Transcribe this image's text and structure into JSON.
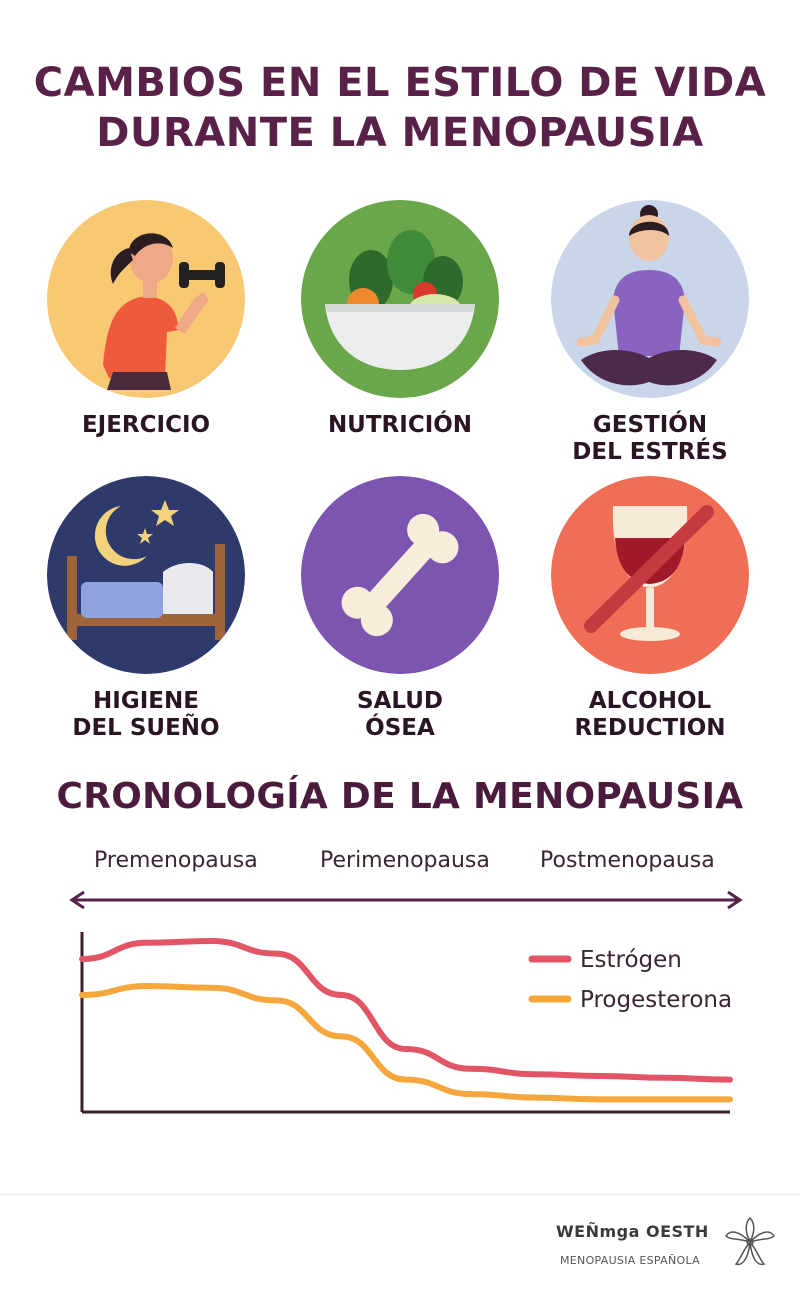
{
  "title": {
    "line1": "CAMBIOS EN EL ESTILO DE VIDA",
    "line2": "DURANTE LA MENOPAUSIA"
  },
  "cards": [
    {
      "icon": "dumbbell-woman-icon",
      "color": "#f8c873",
      "line1": "EJERCICIO",
      "line2": ""
    },
    {
      "icon": "salad-bowl-icon",
      "color": "#6aa64a",
      "line1": "NUTRICIÓN",
      "line2": ""
    },
    {
      "icon": "meditation-icon",
      "color": "#c9d6ea",
      "line1": "GESTIÓN",
      "line2": "DEL ESTRÉS"
    },
    {
      "icon": "moon-bed-icon",
      "color": "#2f3a6c",
      "line1": "HIGIENE",
      "line2": "DEL SUEÑO"
    },
    {
      "icon": "bone-icon",
      "color": "#7d55b0",
      "line1": "SALUD",
      "line2": "ÓSEA"
    },
    {
      "icon": "no-wine-icon",
      "color": "#ef6e55",
      "line1": "ALCOHOL",
      "line2": "REDUCTION"
    }
  ],
  "timeline": {
    "title": "CRONOLOGÍA DE LA MENOPAUSIA",
    "phases": [
      "Premenopausa",
      "Perimenopausa",
      "Postmenopausa"
    ]
  },
  "chart_data": {
    "type": "line",
    "title": "",
    "xlabel": "",
    "ylabel": "",
    "x": [
      0,
      1,
      2,
      3,
      4,
      5,
      6,
      7,
      8,
      9,
      10
    ],
    "series": [
      {
        "name": "Estrógen",
        "color": "#e25566",
        "values": [
          0.85,
          0.94,
          0.95,
          0.88,
          0.65,
          0.35,
          0.24,
          0.21,
          0.2,
          0.19,
          0.18
        ]
      },
      {
        "name": "Progesterona",
        "color": "#f5a63c",
        "values": [
          0.65,
          0.7,
          0.69,
          0.62,
          0.42,
          0.18,
          0.1,
          0.08,
          0.07,
          0.07,
          0.07
        ]
      }
    ],
    "ylim": [
      0,
      1
    ],
    "grid": false,
    "legend": "top-right"
  },
  "footer": {
    "brand": "WEÑmga OESTH",
    "subtitle": "MENOPAUSIA ESPAÑOLA",
    "logo": "flower-logo-icon"
  }
}
